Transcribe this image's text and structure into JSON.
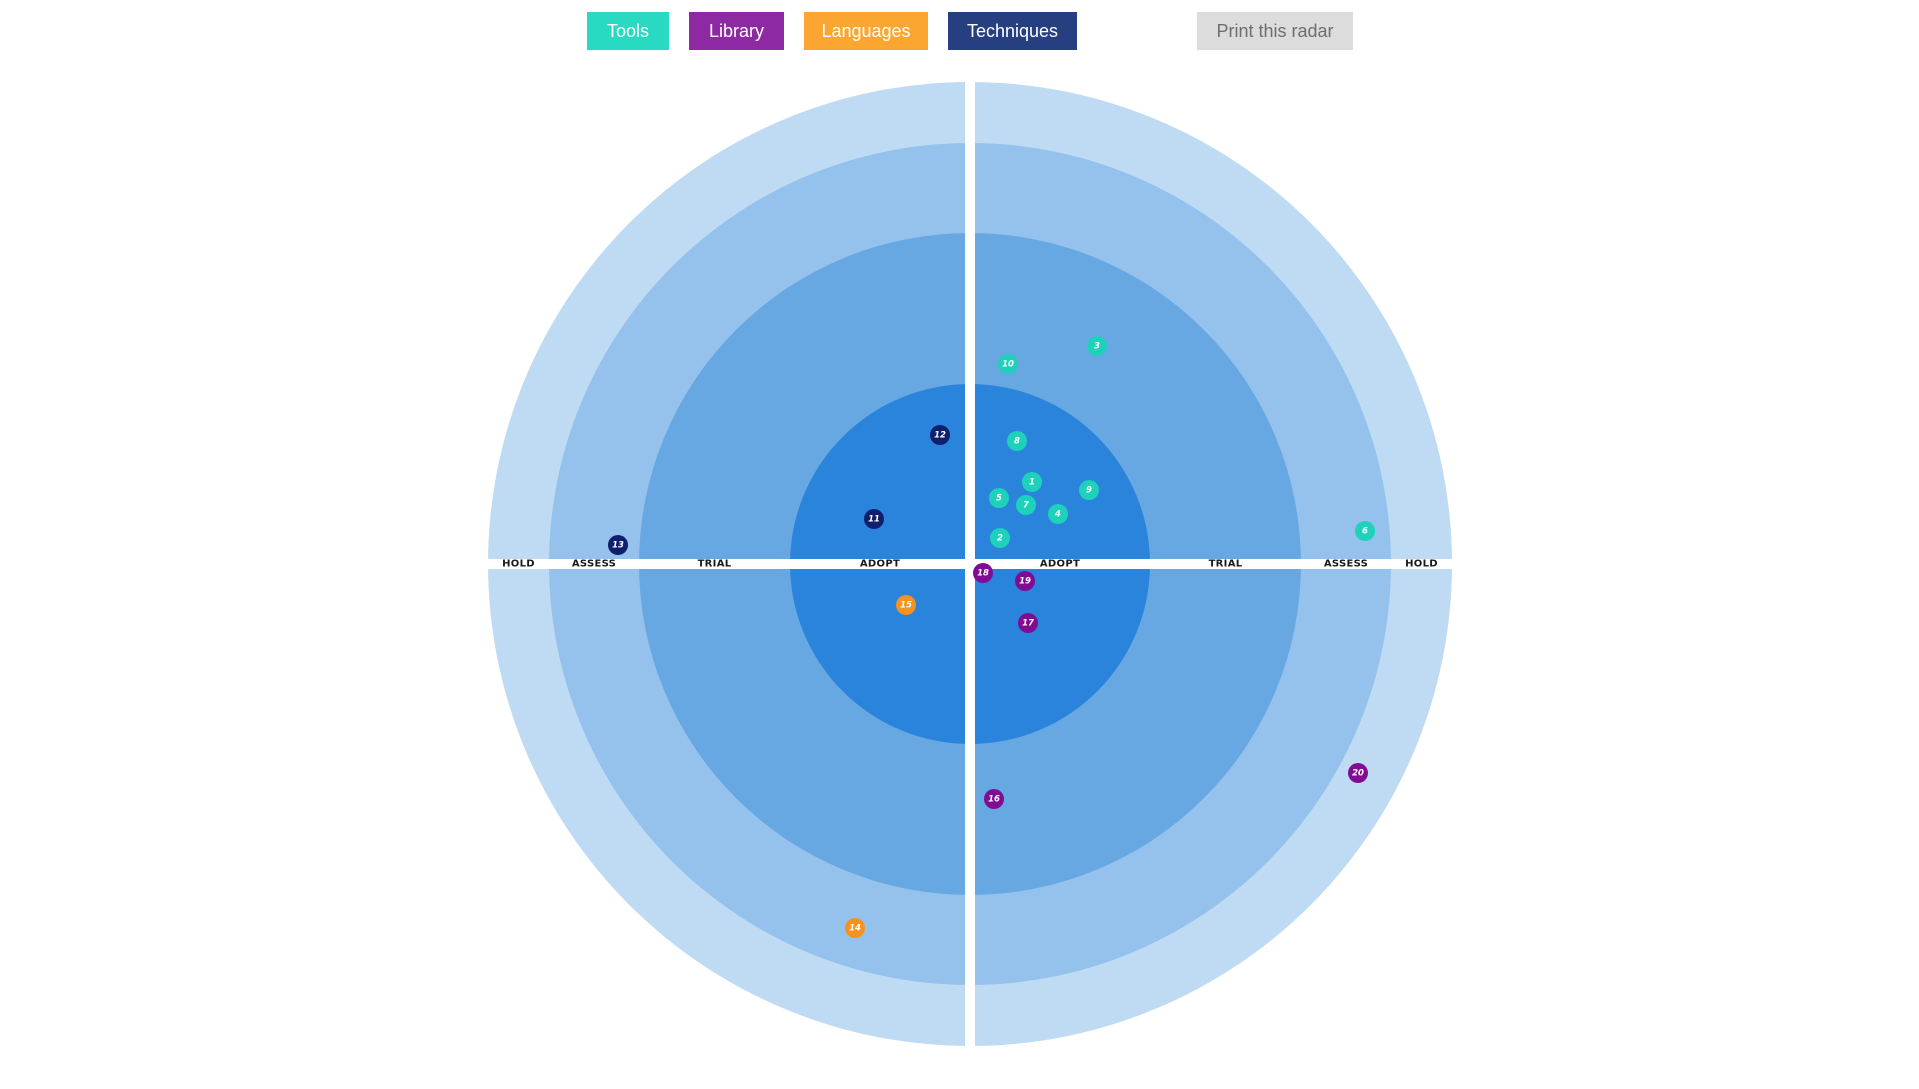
{
  "nav": {
    "quadrants": [
      {
        "id": "tools",
        "label": "Tools",
        "color": "#2ad9c2"
      },
      {
        "id": "library",
        "label": "Library",
        "color": "#8d2aa3"
      },
      {
        "id": "languages",
        "label": "Languages",
        "color": "#fba631"
      },
      {
        "id": "techniques",
        "label": "Techniques",
        "color": "#263f80"
      }
    ],
    "print_label": "Print this radar",
    "print_color": "#dcdcdc"
  },
  "rings": [
    {
      "name": "ADOPT",
      "color": "#2a84dc"
    },
    {
      "name": "TRIAL",
      "color": "#67a8e3"
    },
    {
      "name": "ASSESS",
      "color": "#94c2ec"
    },
    {
      "name": "HOLD",
      "color": "#bfdbf4"
    }
  ],
  "blip_colors": {
    "tools": "#1ed1bb",
    "library": "#800c93",
    "languages": "#f6921e",
    "techniques": "#0f1f6d"
  },
  "blips": [
    {
      "num": "1",
      "quadrant": "tools"
    },
    {
      "num": "2",
      "quadrant": "tools"
    },
    {
      "num": "3",
      "quadrant": "tools"
    },
    {
      "num": "4",
      "quadrant": "tools"
    },
    {
      "num": "5",
      "quadrant": "tools"
    },
    {
      "num": "6",
      "quadrant": "tools"
    },
    {
      "num": "7",
      "quadrant": "tools"
    },
    {
      "num": "8",
      "quadrant": "tools"
    },
    {
      "num": "9",
      "quadrant": "tools"
    },
    {
      "num": "10",
      "quadrant": "tools"
    },
    {
      "num": "11",
      "quadrant": "techniques"
    },
    {
      "num": "12",
      "quadrant": "techniques"
    },
    {
      "num": "13",
      "quadrant": "techniques"
    },
    {
      "num": "14",
      "quadrant": "languages"
    },
    {
      "num": "15",
      "quadrant": "languages"
    },
    {
      "num": "16",
      "quadrant": "library"
    },
    {
      "num": "17",
      "quadrant": "library"
    },
    {
      "num": "18",
      "quadrant": "library"
    },
    {
      "num": "19",
      "quadrant": "library"
    },
    {
      "num": "20",
      "quadrant": "library"
    }
  ]
}
